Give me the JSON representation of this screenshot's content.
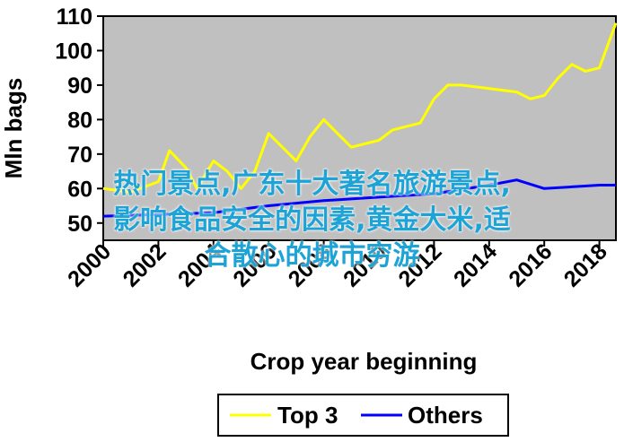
{
  "chart_data": {
    "type": "line",
    "xlabel": "Crop year beginning",
    "ylabel": "Mln bags",
    "xlim": [
      2000,
      2018.6
    ],
    "ylim": [
      45,
      110
    ],
    "yticks": [
      50,
      60,
      70,
      80,
      90,
      100,
      110
    ],
    "xticks": [
      2000,
      2002,
      2004,
      2006,
      2008,
      2010,
      2012,
      2014,
      2016,
      2018
    ],
    "grid": false,
    "plot_background": "#c0c0c0",
    "legend_position": "bottom",
    "series": [
      {
        "name": "Top 3",
        "color": "#ffff00",
        "x": [
          2000,
          2001,
          2002,
          2002.4,
          2003,
          2003.4,
          2004,
          2004.5,
          2005,
          2005.5,
          2006,
          2006.5,
          2007,
          2007.5,
          2008,
          2008.5,
          2009,
          2009.5,
          2010,
          2010.5,
          2011,
          2011.5,
          2012,
          2012.5,
          2013,
          2014,
          2015,
          2015.5,
          2016,
          2016.5,
          2017,
          2017.5,
          2018,
          2018.6
        ],
        "values": [
          60,
          59,
          62,
          71,
          66,
          60,
          68,
          65,
          60,
          65,
          76,
          72,
          68,
          75,
          80,
          76,
          72,
          73,
          74,
          77,
          78,
          79,
          86,
          90,
          90,
          89,
          88,
          86,
          87,
          92,
          96,
          94,
          95,
          108
        ]
      },
      {
        "name": "Others",
        "color": "#0000ff",
        "x": [
          2000,
          2002,
          2004,
          2006,
          2008,
          2010,
          2012,
          2014,
          2015,
          2016,
          2017,
          2018,
          2018.6
        ],
        "values": [
          52,
          52.5,
          53,
          55,
          56.5,
          57.5,
          58.5,
          61,
          62.5,
          60,
          60.5,
          61,
          61
        ]
      }
    ]
  },
  "legend": {
    "items": [
      {
        "label": "Top 3",
        "color": "#ffff00"
      },
      {
        "label": "Others",
        "color": "#0000ff"
      }
    ]
  },
  "overlay": {
    "line1": "热门景点,广东十大著名旅游景点,",
    "line2": "影响食品安全的因素,黄金大米,适",
    "line3": "合散心的城市穷游"
  }
}
